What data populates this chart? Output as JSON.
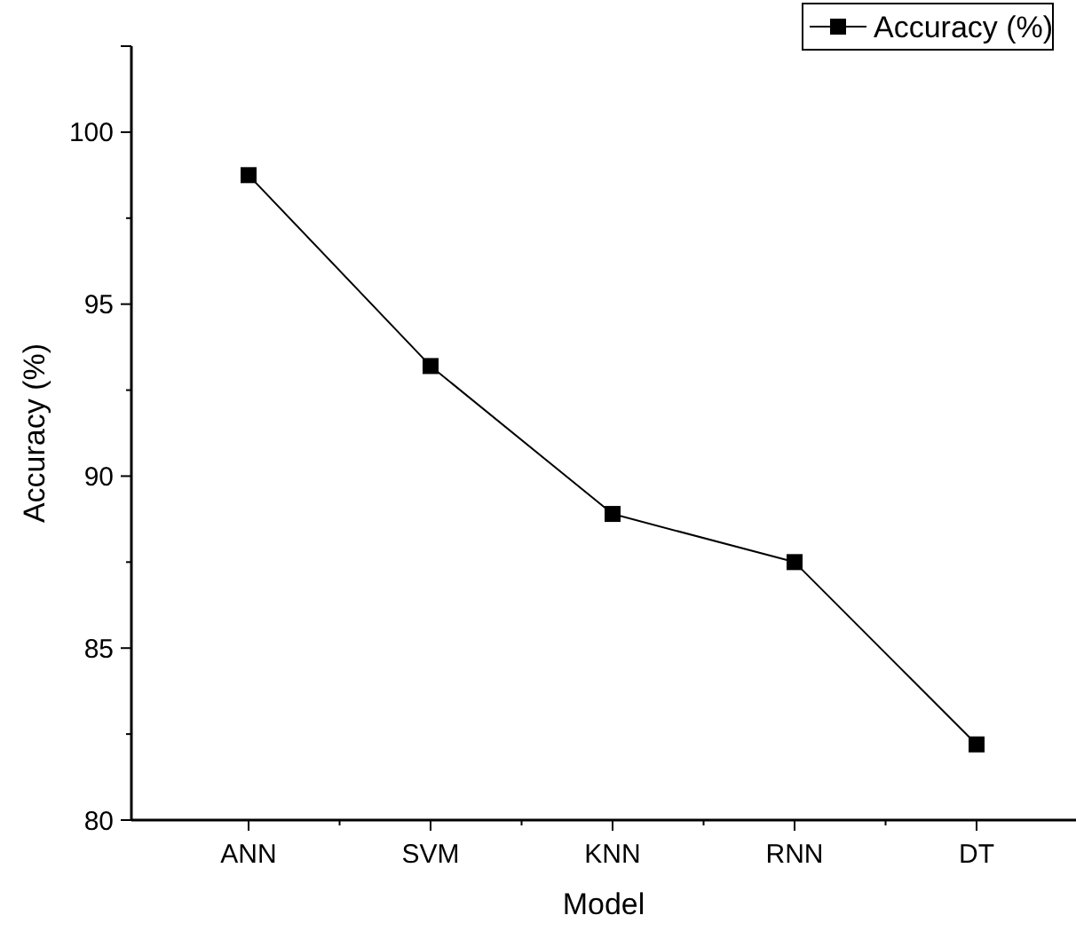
{
  "chart_data": {
    "type": "line",
    "xlabel": "Model",
    "ylabel": "Accuracy (%)",
    "categories": [
      "ANN",
      "SVM",
      "KNN",
      "RNN",
      "DT"
    ],
    "series": [
      {
        "name": "Accuracy (%)",
        "color": "#000000",
        "values": [
          98.75,
          93.2,
          88.9,
          87.5,
          82.2
        ]
      }
    ],
    "ylim": [
      80,
      102.5
    ],
    "yticks": [
      80,
      85,
      90,
      95,
      100
    ],
    "marker": "square",
    "line_style": "solid",
    "legend": "top right",
    "grid": false
  }
}
